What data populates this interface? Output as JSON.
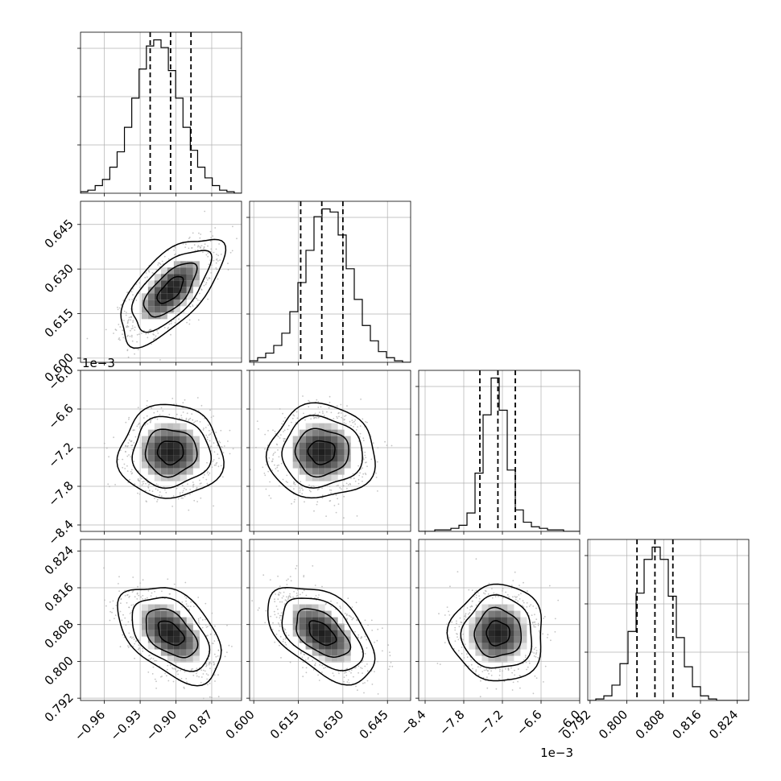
{
  "chart_data": {
    "type": "corner",
    "parameters": [
      {
        "index": 0,
        "range": [
          -0.98,
          -0.845
        ],
        "ticks": [
          -0.96,
          -0.93,
          -0.9,
          -0.87
        ],
        "tick_labels": [
          "−0.96",
          "−0.93",
          "−0.90",
          "−0.87"
        ],
        "offset_label": "",
        "quantiles": [
          -0.9216,
          -0.9045,
          -0.8874
        ],
        "mean": -0.9045,
        "std": 0.0173
      },
      {
        "index": 1,
        "range": [
          0.5986,
          0.6528
        ],
        "ticks": [
          0.6,
          0.615,
          0.63,
          0.645
        ],
        "tick_labels": [
          "0.600",
          "0.615",
          "0.630",
          "0.645"
        ],
        "offset_label": "",
        "quantiles": [
          0.6158,
          0.6229,
          0.63
        ],
        "mean": 0.6229,
        "std": 0.0072
      },
      {
        "index": 2,
        "range": [
          -8.5,
          -6.0
        ],
        "ticks": [
          -8.4,
          -7.8,
          -7.2,
          -6.6,
          -6.0
        ],
        "tick_labels": [
          "−8.4",
          "−7.8",
          "−7.2",
          "−6.6",
          "−6.0"
        ],
        "offset_label": "1e−3",
        "quantiles": [
          -7.55,
          -7.27,
          -7.0
        ],
        "mean": -7.27,
        "std": 0.29
      },
      {
        "index": 3,
        "range": [
          0.7915,
          0.8265
        ],
        "ticks": [
          0.792,
          0.8,
          0.808,
          0.816,
          0.824
        ],
        "tick_labels": [
          "0.792",
          "0.800",
          "0.808",
          "0.816",
          "0.824"
        ],
        "offset_label": "",
        "quantiles": [
          0.8022,
          0.8061,
          0.81
        ],
        "mean": 0.8061,
        "std": 0.0042
      }
    ],
    "histograms": [
      [
        1,
        2,
        5,
        9,
        17,
        27,
        43,
        62,
        81,
        96,
        100,
        95,
        80,
        62,
        43,
        28,
        17,
        10,
        5,
        2,
        1,
        0
      ],
      [
        1,
        3,
        6,
        11,
        19,
        33,
        52,
        73,
        95,
        100,
        98,
        83,
        61,
        41,
        24,
        14,
        7,
        3,
        1,
        0
      ],
      [
        0,
        0,
        1,
        1,
        2,
        4,
        12,
        38,
        76,
        100,
        79,
        40,
        14,
        6,
        3,
        2,
        1,
        1,
        0,
        0
      ],
      [
        0,
        1,
        3,
        10,
        24,
        45,
        70,
        92,
        100,
        92,
        68,
        41,
        22,
        9,
        3,
        1,
        0,
        0,
        0,
        0
      ]
    ],
    "correlations": [
      {
        "row": 1,
        "col": 0,
        "rho": 0.65
      },
      {
        "row": 2,
        "col": 0,
        "rho": 0.0
      },
      {
        "row": 2,
        "col": 1,
        "rho": 0.0
      },
      {
        "row": 3,
        "col": 0,
        "rho": -0.45
      },
      {
        "row": 3,
        "col": 1,
        "rho": -0.5
      },
      {
        "row": 3,
        "col": 2,
        "rho": 0.0
      }
    ],
    "contour_levels_sigma": [
      0.5,
      1.0,
      1.5,
      2.0
    ],
    "grid": true,
    "colors": {
      "hist_line": "#000000",
      "quantile_line": "#000000",
      "contour": "#000000",
      "points": "#b0b0b0",
      "grid": "#b0b0b0"
    }
  }
}
